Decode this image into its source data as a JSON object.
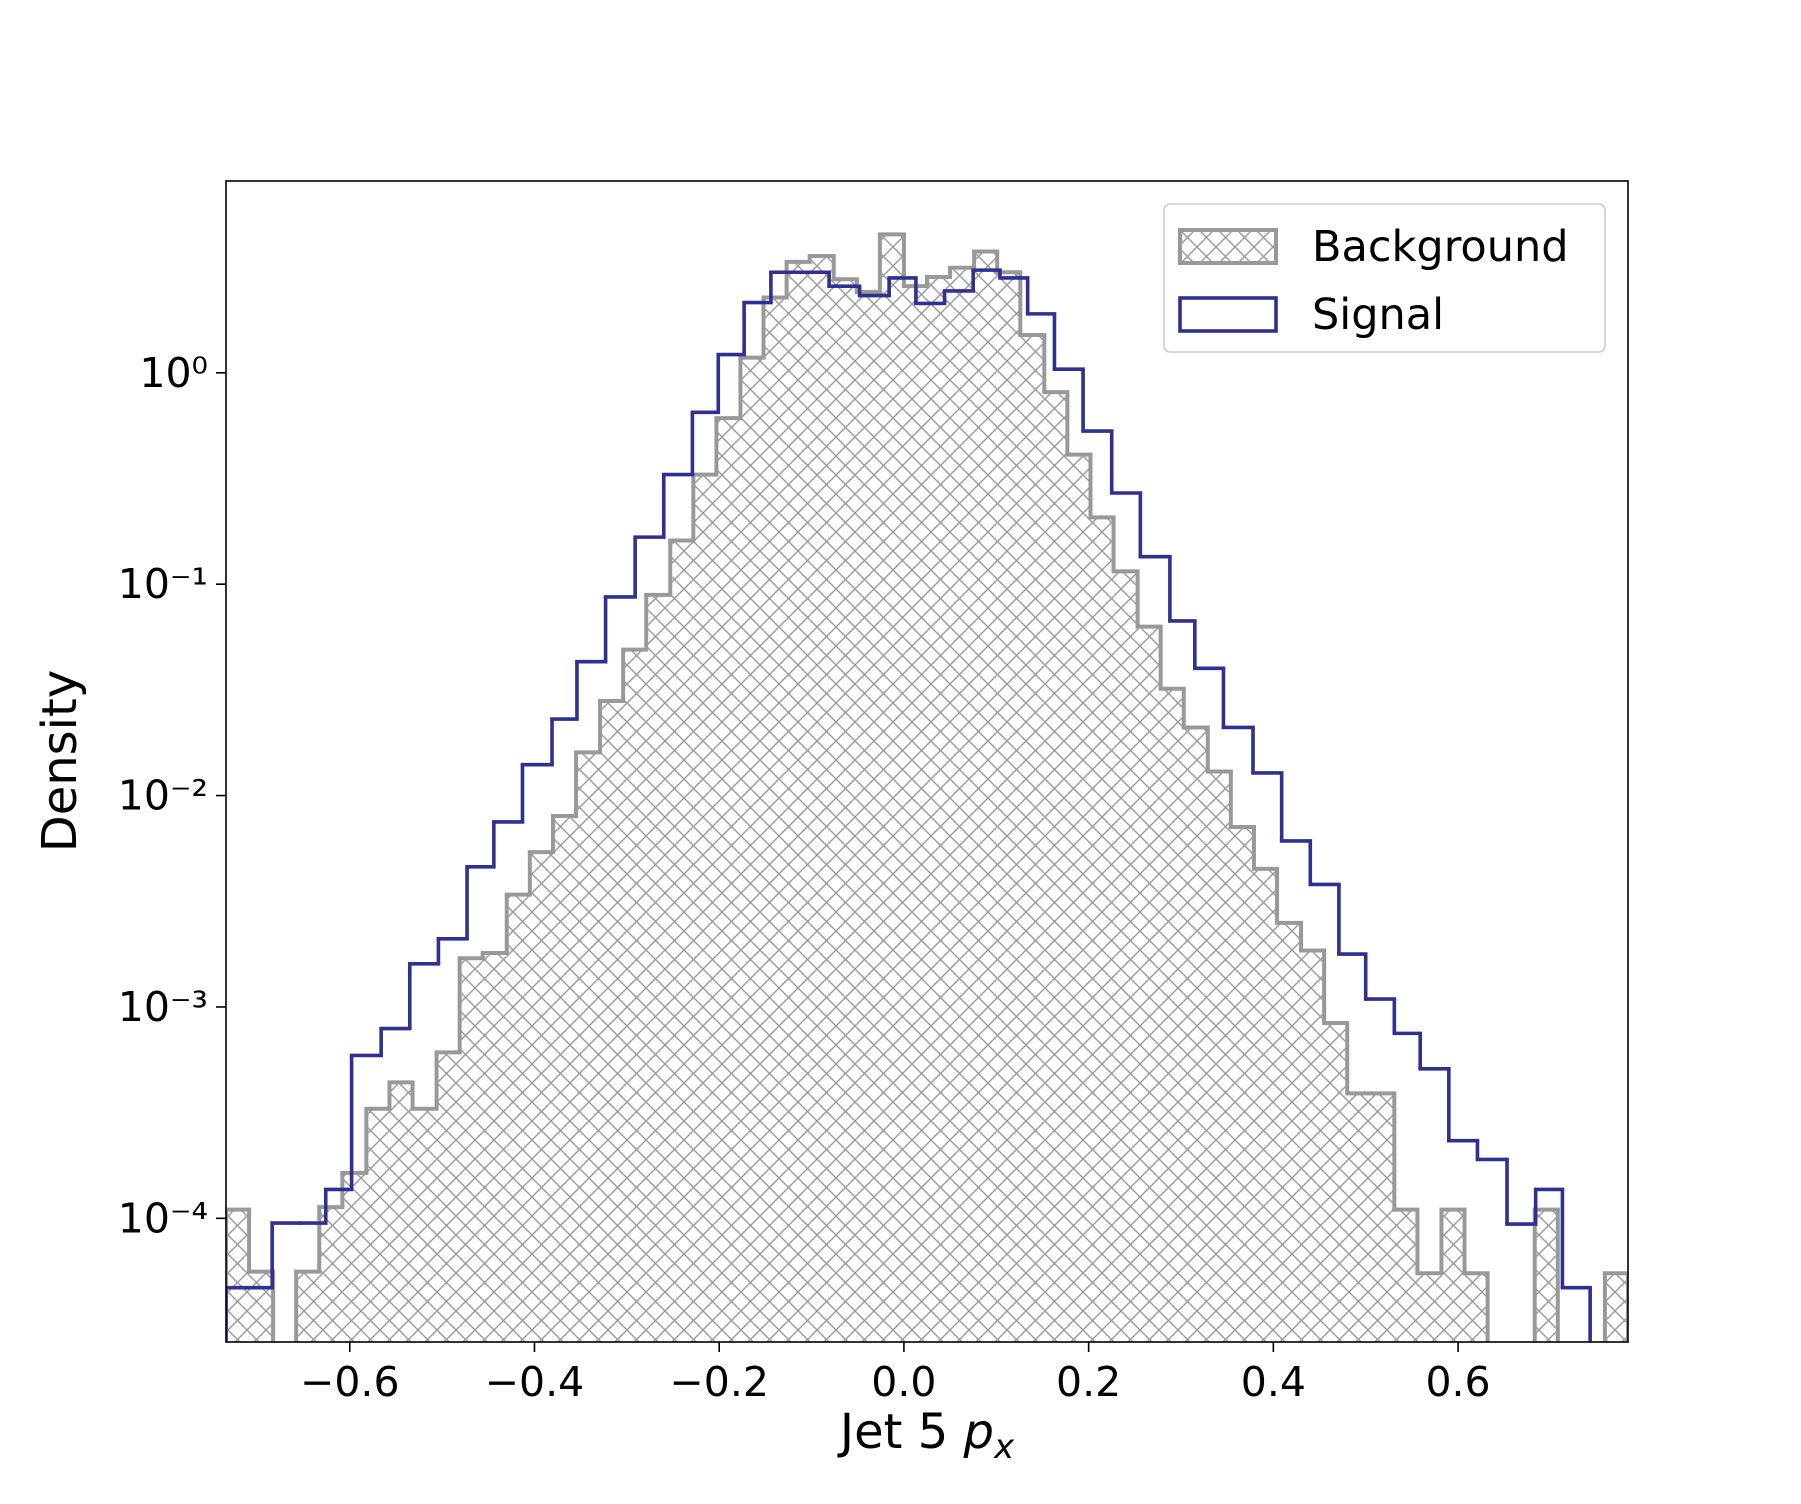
{
  "chart_data": {
    "type": "histogram",
    "xlabel": {
      "text": "Jet 5 ",
      "var": "p",
      "sub": "x"
    },
    "ylabel": "Density",
    "xlim": [
      -0.734,
      0.784
    ],
    "ylim": [
      2.6e-05,
      8.08
    ],
    "log_y": true,
    "legend": "upper right",
    "xticks": [
      {
        "value": -0.6,
        "label": "−0.6"
      },
      {
        "value": -0.4,
        "label": "−0.4"
      },
      {
        "value": -0.2,
        "label": "−0.2"
      },
      {
        "value": 0,
        "label": "0.0"
      },
      0.2,
      0.4,
      0.6
    ],
    "yticks": [
      {
        "value": 0.0001,
        "label": "10⁻⁴"
      },
      {
        "value": 0.001,
        "label": "10⁻³"
      },
      {
        "value": 0.01,
        "label": "10⁻²"
      },
      {
        "value": 0.1,
        "label": "10⁻¹"
      },
      {
        "value": 1,
        "label": "10⁰"
      }
    ],
    "series": [
      {
        "name": "Background",
        "color": "#999999",
        "hatch": "xx",
        "bins": [
          -0.734,
          -0.709,
          -0.683,
          -0.658,
          -0.633,
          -0.608,
          -0.582,
          -0.557,
          -0.532,
          -0.506,
          -0.481,
          -0.456,
          -0.43,
          -0.405,
          -0.38,
          -0.355,
          -0.329,
          -0.304,
          -0.279,
          -0.253,
          -0.228,
          -0.203,
          -0.177,
          -0.152,
          -0.127,
          -0.102,
          -0.076,
          -0.051,
          -0.026,
          0.0,
          0.025,
          0.05,
          0.076,
          0.101,
          0.126,
          0.152,
          0.177,
          0.202,
          0.227,
          0.253,
          0.278,
          0.303,
          0.329,
          0.354,
          0.379,
          0.404,
          0.43,
          0.455,
          0.48,
          0.506,
          0.531,
          0.556,
          0.582,
          0.607,
          0.632,
          0.657,
          0.683,
          0.708,
          0.733,
          0.759,
          0.784
        ],
        "values": [
          0.00011,
          5.6e-05,
          0,
          5.6e-05,
          0.000113,
          0.000164,
          0.00033,
          0.00044,
          0.00033,
          0.00061,
          0.0017,
          0.0018,
          0.0034,
          0.0054,
          0.008,
          0.016,
          0.028,
          0.049,
          0.089,
          0.161,
          0.33,
          0.61,
          1.18,
          2.27,
          3.35,
          3.57,
          2.77,
          2.41,
          4.52,
          2.57,
          2.84,
          3.14,
          3.75,
          2.99,
          1.51,
          0.81,
          0.41,
          0.207,
          0.115,
          0.063,
          0.032,
          0.021,
          0.013,
          0.0071,
          0.0045,
          0.0025,
          0.00185,
          0.00084,
          0.00039,
          0.00039,
          0.00011,
          5.5e-05,
          0.00011,
          5.5e-05,
          0,
          0,
          0.00011,
          0,
          0,
          5.5e-05
        ]
      },
      {
        "name": "Signal",
        "color": "#2e3192",
        "bins": [
          -0.734,
          -0.684,
          -0.654,
          -0.626,
          -0.598,
          -0.566,
          -0.535,
          -0.504,
          -0.473,
          -0.444,
          -0.413,
          -0.381,
          -0.354,
          -0.323,
          -0.291,
          -0.26,
          -0.229,
          -0.201,
          -0.173,
          -0.144,
          -0.114,
          -0.081,
          -0.048,
          -0.016,
          0.013,
          0.044,
          0.075,
          0.104,
          0.134,
          0.163,
          0.194,
          0.225,
          0.256,
          0.288,
          0.315,
          0.346,
          0.378,
          0.409,
          0.44,
          0.471,
          0.5,
          0.531,
          0.559,
          0.59,
          0.621,
          0.653,
          0.684,
          0.713,
          0.743
        ],
        "values": [
          4.7e-05,
          9.5e-05,
          9.5e-05,
          0.000137,
          0.00059,
          0.00079,
          0.0016,
          0.0021,
          0.0046,
          0.0075,
          0.014,
          0.023,
          0.043,
          0.087,
          0.167,
          0.33,
          0.65,
          1.22,
          2.15,
          2.99,
          2.99,
          2.57,
          2.32,
          2.81,
          2.13,
          2.44,
          3.06,
          2.81,
          1.9,
          1.04,
          0.53,
          0.27,
          0.135,
          0.067,
          0.04,
          0.021,
          0.0128,
          0.0061,
          0.0038,
          0.00178,
          0.00109,
          0.00075,
          0.00051,
          0.000233,
          0.00019,
          9.4e-05,
          0.000137,
          4.7e-05
        ]
      }
    ]
  }
}
